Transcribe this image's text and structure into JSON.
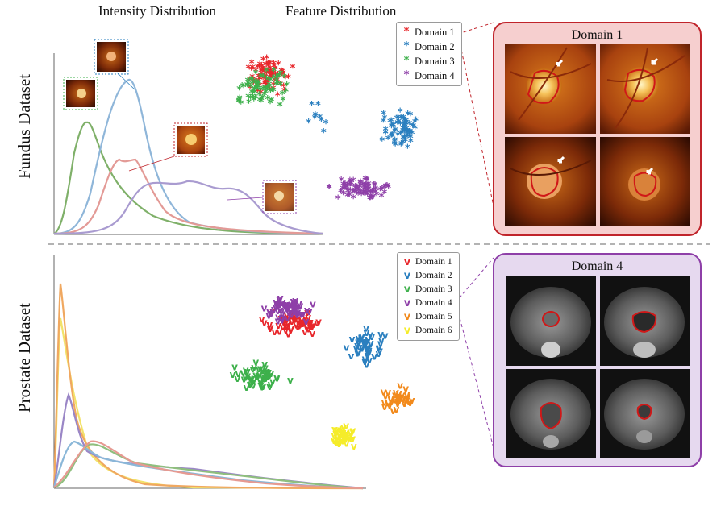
{
  "headers": {
    "intensity": "Intensity Distribution",
    "feature": "Feature Distribution"
  },
  "rows": {
    "fundus": "Fundus Dataset",
    "prostate": "Prostate Dataset"
  },
  "fundus_legend": [
    {
      "label": "Domain 1",
      "marker": "*",
      "color": "#e8262b"
    },
    {
      "label": "Domain 2",
      "marker": "*",
      "color": "#2a7fbf"
    },
    {
      "label": "Domain 3",
      "marker": "*",
      "color": "#3db04b"
    },
    {
      "label": "Domain 4",
      "marker": "*",
      "color": "#8e3fa8"
    }
  ],
  "prostate_legend": [
    {
      "label": "Domain 1",
      "marker": "v",
      "color": "#e8262b"
    },
    {
      "label": "Domain 2",
      "marker": "v",
      "color": "#2a7fbf"
    },
    {
      "label": "Domain 3",
      "marker": "v",
      "color": "#3db04b"
    },
    {
      "label": "Domain 4",
      "marker": "v",
      "color": "#8e3fa8"
    },
    {
      "label": "Domain 5",
      "marker": "v",
      "color": "#f28a1c"
    },
    {
      "label": "Domain 6",
      "marker": "v",
      "color": "#f5ec2a"
    }
  ],
  "fundus_panel": {
    "title": "Domain 1",
    "border": "#c0242b",
    "fill": "#f6cfcf"
  },
  "prostate_panel": {
    "title": "Domain 4",
    "border": "#8e3fa8",
    "fill": "#e6d9ef"
  },
  "chart_data": [
    {
      "type": "line",
      "series": [
        {
          "color": "#7fb069"
        },
        {
          "color": "#8fb6d9"
        },
        {
          "color": "#e39a96"
        },
        {
          "color": "#a99bd0"
        }
      ]
    },
    {
      "type": "scatter",
      "marker": "*",
      "series": [
        {
          "name": "Domain 1",
          "color": "#e8262b"
        },
        {
          "name": "Domain 2",
          "color": "#2a7fbf"
        },
        {
          "name": "Domain 3",
          "color": "#3db04b"
        },
        {
          "name": "Domain 4",
          "color": "#8e3fa8"
        }
      ]
    },
    {
      "type": "line",
      "series": [
        {
          "color": "#f2e26a"
        },
        {
          "color": "#f0a860"
        },
        {
          "color": "#9a86c6"
        },
        {
          "color": "#8ab7d8"
        },
        {
          "color": "#8fbf7e"
        },
        {
          "color": "#e69a92"
        }
      ]
    },
    {
      "type": "scatter",
      "marker": "v",
      "series": [
        {
          "name": "Domain 1",
          "color": "#e8262b"
        },
        {
          "name": "Domain 2",
          "color": "#2a7fbf"
        },
        {
          "name": "Domain 3",
          "color": "#3db04b"
        },
        {
          "name": "Domain 4",
          "color": "#8e3fa8"
        },
        {
          "name": "Domain 5",
          "color": "#f28a1c"
        },
        {
          "name": "Domain 6",
          "color": "#f5ec2a"
        }
      ]
    }
  ]
}
